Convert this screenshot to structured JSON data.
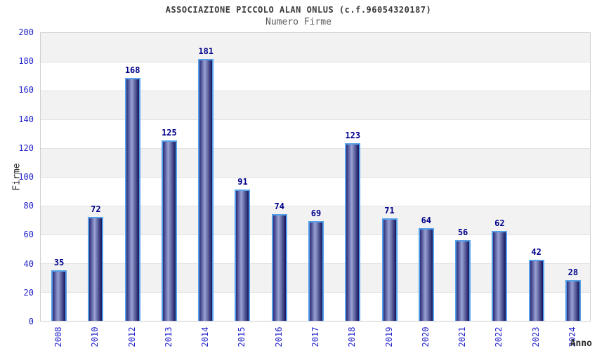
{
  "chart_data": {
    "type": "bar",
    "title": "ASSOCIAZIONE PICCOLO ALAN ONLUS (c.f.96054320187)",
    "subtitle": "Numero Firme",
    "xlabel": "Anno",
    "ylabel": "Firme",
    "categories": [
      "2008",
      "2010",
      "2012",
      "2013",
      "2014",
      "2015",
      "2016",
      "2017",
      "2018",
      "2019",
      "2020",
      "2021",
      "2022",
      "2023",
      "2024"
    ],
    "values": [
      35,
      72,
      168,
      125,
      181,
      91,
      74,
      69,
      123,
      71,
      64,
      56,
      62,
      42,
      28
    ],
    "ylim": [
      0,
      200
    ],
    "ytick_step": 20,
    "grid": true,
    "legend_position": "none",
    "bands_alternating": true,
    "colors": {
      "tick_label": "#2222cc",
      "value_label": "#00008b",
      "bar_border": "#55a0e8",
      "bar_gradient_left": "#2b2b78",
      "bar_gradient_mid": "#9aa2d4",
      "bar_gradient_right": "#14145c",
      "band_gray": "#f2f2f2",
      "band_white": "#ffffff",
      "gridline": "#e2e2e2",
      "plot_border": "#cfcfcf",
      "title_color": "#3a3a3a",
      "subtitle_color": "#5a5a5a",
      "axis_label_color": "#2a2a2a"
    }
  }
}
